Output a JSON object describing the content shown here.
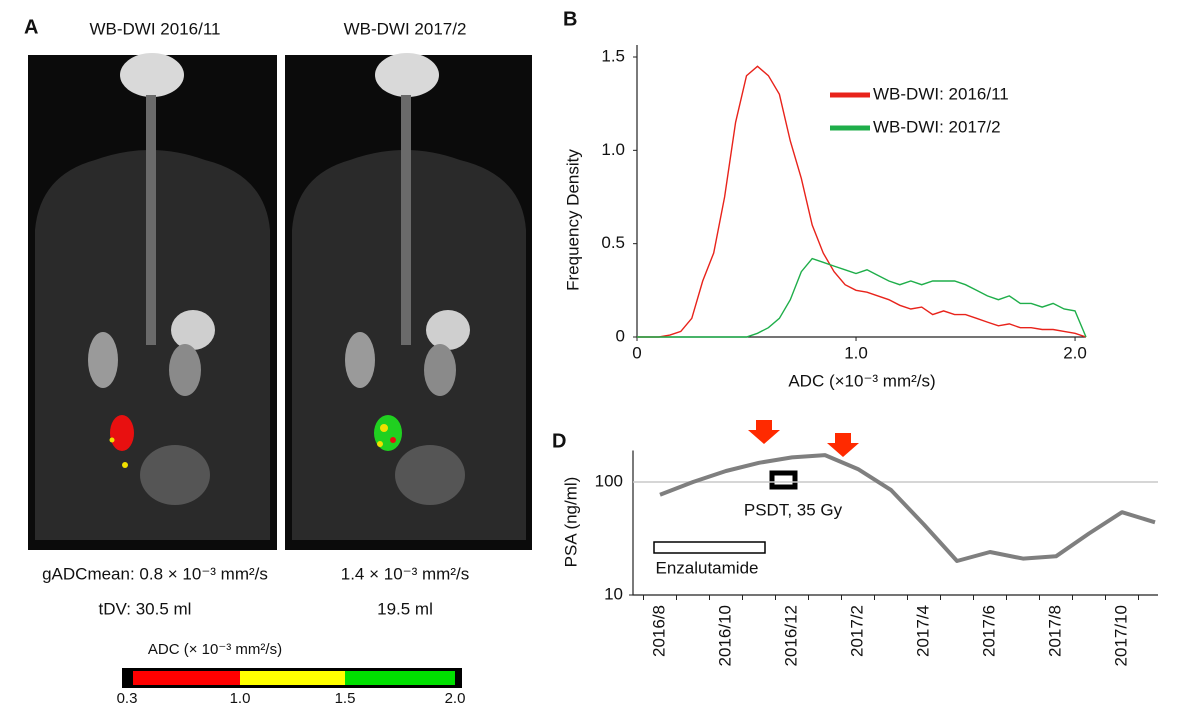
{
  "panel_a": {
    "label": "A",
    "titles": [
      "WB-DWI 2016/11",
      "WB-DWI 2017/2"
    ],
    "adc_mean": [
      "gADCmean: 0.8 × 10⁻³ mm²/s",
      "1.4 × 10⁻³ mm²/s"
    ],
    "tdv": [
      "tDV: 30.5 ml",
      "19.5 ml"
    ],
    "colorbar": {
      "title": "ADC (× 10⁻³ mm²/s)",
      "ticks": [
        "0.3",
        "1.0",
        "1.5",
        "2.0"
      ]
    }
  },
  "chart_data": [
    {
      "type": "line",
      "title": "B",
      "x_label": "ADC (×10⁻³ mm²/s)",
      "y_label": "Frequency Density",
      "x": [
        0,
        0.05,
        0.1,
        0.15,
        0.2,
        0.25,
        0.3,
        0.35,
        0.4,
        0.45,
        0.5,
        0.55,
        0.6,
        0.65,
        0.7,
        0.75,
        0.8,
        0.85,
        0.9,
        0.95,
        1.0,
        1.05,
        1.1,
        1.15,
        1.2,
        1.25,
        1.3,
        1.35,
        1.4,
        1.45,
        1.5,
        1.55,
        1.6,
        1.65,
        1.7,
        1.75,
        1.8,
        1.85,
        1.9,
        1.95,
        2.0,
        2.05
      ],
      "series": [
        {
          "name": "WB-DWI: 2016/11",
          "color": "#e8231b",
          "values": [
            0,
            0,
            0,
            0.01,
            0.03,
            0.1,
            0.3,
            0.45,
            0.75,
            1.15,
            1.4,
            1.45,
            1.4,
            1.3,
            1.05,
            0.85,
            0.6,
            0.45,
            0.35,
            0.28,
            0.25,
            0.24,
            0.22,
            0.2,
            0.17,
            0.15,
            0.16,
            0.12,
            0.14,
            0.12,
            0.12,
            0.1,
            0.08,
            0.06,
            0.07,
            0.05,
            0.05,
            0.04,
            0.04,
            0.03,
            0.02,
            0
          ]
        },
        {
          "name": "WB-DWI: 2017/2",
          "color": "#1fae4a",
          "values": [
            0,
            0,
            0,
            0,
            0,
            0,
            0,
            0,
            0,
            0,
            0,
            0.02,
            0.05,
            0.1,
            0.2,
            0.35,
            0.42,
            0.4,
            0.38,
            0.36,
            0.34,
            0.36,
            0.33,
            0.3,
            0.28,
            0.3,
            0.28,
            0.3,
            0.3,
            0.3,
            0.28,
            0.25,
            0.22,
            0.2,
            0.22,
            0.18,
            0.18,
            0.16,
            0.18,
            0.15,
            0.14,
            0
          ]
        }
      ],
      "xlim": [
        0,
        2.05
      ],
      "xticks": [
        0,
        {
          "value": 1,
          "label": "1.0"
        },
        {
          "value": 2,
          "label": "2.0"
        }
      ],
      "ylim": [
        0,
        1.5
      ],
      "yticks": [
        0,
        0.5,
        {
          "value": 1,
          "label": "1.0"
        },
        1.5
      ]
    },
    {
      "type": "line",
      "title": "D",
      "y_label": "PSA (ng/ml)",
      "categories": [
        "2016/8",
        null,
        "2016/10",
        null,
        "2016/12",
        null,
        "2017/2",
        null,
        "2017/4",
        null,
        "2017/6",
        null,
        "2017/8",
        null,
        "2017/10",
        null
      ],
      "values": [
        77,
        100,
        125,
        148,
        165,
        173,
        130,
        85,
        42,
        20,
        24,
        21,
        22,
        35,
        54,
        44
      ],
      "color": "#7f7f7f",
      "log_scale": true,
      "ylim": [
        10,
        190
      ],
      "yticks": [
        10,
        100
      ],
      "grid": true,
      "annotations": [
        "Enzalutamide",
        "PSDT, 35 Gy"
      ]
    }
  ]
}
